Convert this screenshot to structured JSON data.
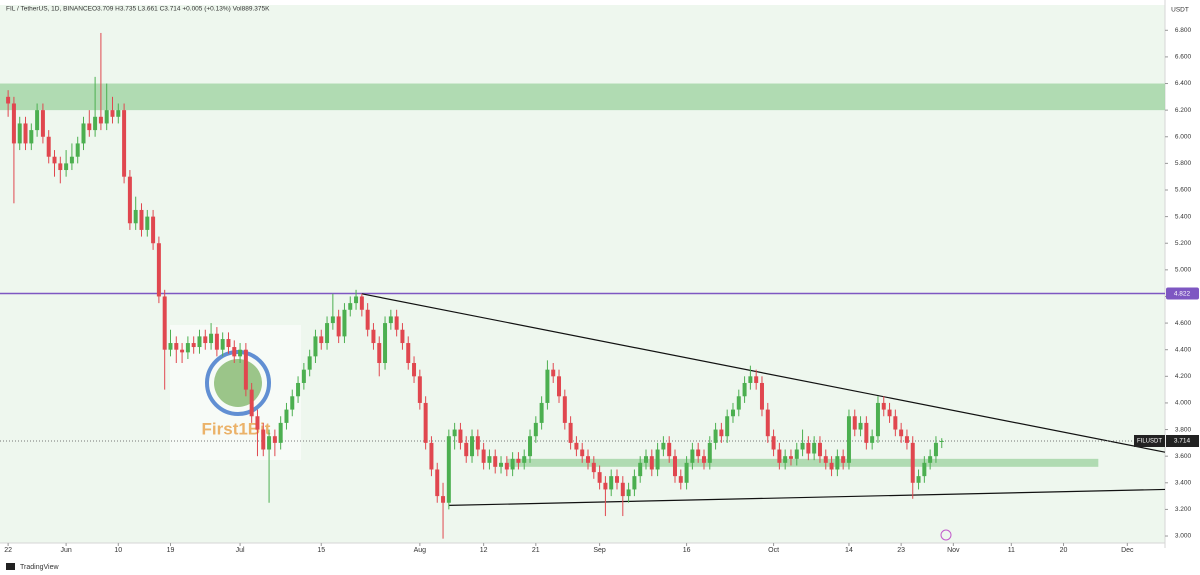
{
  "header": {
    "symbol": "FIL / TetherUS, 1D, BINANCE",
    "ohlc_text": "O3.709 H3.735 L3.661 C3.714 +0.005 (+0.13%) Vol889.375K"
  },
  "currency": "USDT",
  "watermark": "First1Bit",
  "footer": "TradingView",
  "chart_data": {
    "type": "candlestick",
    "up_color": "#4caf50",
    "down_color": "#e0474f",
    "xlim": [
      -1.4,
      199.5
    ],
    "xticks": [
      {
        "value": 0,
        "label": "22"
      },
      {
        "value": 10,
        "label": "Jun"
      },
      {
        "value": 19,
        "label": "10"
      },
      {
        "value": 28,
        "label": "19"
      },
      {
        "value": 40,
        "label": "Jul"
      },
      {
        "value": 54,
        "label": "15"
      },
      {
        "value": 71,
        "label": "Aug"
      },
      {
        "value": 82,
        "label": "12"
      },
      {
        "value": 91,
        "label": "21"
      },
      {
        "value": 102,
        "label": "Sep"
      },
      {
        "value": 117,
        "label": "16"
      },
      {
        "value": 132,
        "label": "Oct"
      },
      {
        "value": 145,
        "label": "14"
      },
      {
        "value": 154,
        "label": "23"
      },
      {
        "value": 163,
        "label": "Nov"
      },
      {
        "value": 173,
        "label": "11"
      },
      {
        "value": 182,
        "label": "20"
      },
      {
        "value": 193,
        "label": "Dec"
      }
    ],
    "ylim": [
      2.91,
      6.99
    ],
    "yticks": [
      {
        "value": 3.0,
        "label": "3.000"
      },
      {
        "value": 3.2,
        "label": "3.200"
      },
      {
        "value": 3.4,
        "label": "3.400"
      },
      {
        "value": 3.6,
        "label": "3.600"
      },
      {
        "value": 3.8,
        "label": "3.800"
      },
      {
        "value": 4.0,
        "label": "4.000"
      },
      {
        "value": 4.2,
        "label": "4.200"
      },
      {
        "value": 4.4,
        "label": "4.400"
      },
      {
        "value": 4.6,
        "label": "4.600"
      },
      {
        "value": 4.8,
        "label": "4.800"
      },
      {
        "value": 5.0,
        "label": "5.000"
      },
      {
        "value": 5.2,
        "label": "5.200"
      },
      {
        "value": 5.4,
        "label": "5.400"
      },
      {
        "value": 5.6,
        "label": "5.600"
      },
      {
        "value": 5.8,
        "label": "5.800"
      },
      {
        "value": 6.0,
        "label": "6.000"
      },
      {
        "value": 6.2,
        "label": "6.200"
      },
      {
        "value": 6.4,
        "label": "6.400"
      },
      {
        "value": 6.6,
        "label": "6.600"
      },
      {
        "value": 6.8,
        "label": "6.800"
      }
    ],
    "zones": [
      {
        "from": 6.2,
        "to": 6.4,
        "color": "#a5d6a7"
      },
      {
        "from": 3.52,
        "to": 3.58,
        "x_start": 86,
        "x_end": 188,
        "color": "#a5d6a7"
      }
    ],
    "level": {
      "value": 4.822,
      "color": "#7e57c2"
    },
    "trendlines": [
      {
        "x": [
          61,
          199.5
        ],
        "y": [
          4.82,
          3.63
        ]
      },
      {
        "x": [
          76,
          199.5
        ],
        "y": [
          3.23,
          3.35
        ]
      }
    ],
    "current": {
      "name": "FILUSDT",
      "value": 3.714
    },
    "ohlc": [
      [
        6.3,
        6.35,
        6.15,
        6.25
      ],
      [
        6.25,
        6.3,
        5.5,
        5.95
      ],
      [
        5.95,
        6.15,
        5.9,
        6.1
      ],
      [
        6.1,
        6.15,
        5.9,
        5.95
      ],
      [
        5.95,
        6.1,
        5.9,
        6.05
      ],
      [
        6.05,
        6.25,
        6.0,
        6.2
      ],
      [
        6.2,
        6.25,
        5.95,
        6.0
      ],
      [
        6.0,
        6.05,
        5.8,
        5.85
      ],
      [
        5.85,
        5.9,
        5.7,
        5.8
      ],
      [
        5.8,
        5.85,
        5.65,
        5.75
      ],
      [
        5.75,
        5.9,
        5.7,
        5.8
      ],
      [
        5.8,
        5.95,
        5.75,
        5.85
      ],
      [
        5.85,
        6.0,
        5.8,
        5.95
      ],
      [
        5.95,
        6.15,
        5.9,
        6.1
      ],
      [
        6.1,
        6.2,
        6.0,
        6.05
      ],
      [
        6.05,
        6.45,
        6.0,
        6.15
      ],
      [
        6.15,
        6.78,
        6.05,
        6.1
      ],
      [
        6.1,
        6.4,
        6.05,
        6.2
      ],
      [
        6.2,
        6.3,
        6.1,
        6.15
      ],
      [
        6.15,
        6.25,
        6.1,
        6.2
      ],
      [
        6.2,
        6.25,
        5.65,
        5.7
      ],
      [
        5.7,
        5.75,
        5.3,
        5.35
      ],
      [
        5.35,
        5.55,
        5.3,
        5.45
      ],
      [
        5.45,
        5.5,
        5.25,
        5.3
      ],
      [
        5.3,
        5.45,
        5.25,
        5.4
      ],
      [
        5.4,
        5.45,
        5.15,
        5.2
      ],
      [
        5.2,
        5.25,
        4.75,
        4.8
      ],
      [
        4.8,
        4.85,
        4.1,
        4.4
      ],
      [
        4.4,
        4.55,
        4.35,
        4.45
      ],
      [
        4.45,
        4.5,
        4.3,
        4.4
      ],
      [
        4.4,
        4.45,
        4.3,
        4.38
      ],
      [
        4.38,
        4.5,
        4.33,
        4.45
      ],
      [
        4.45,
        4.5,
        4.37,
        4.42
      ],
      [
        4.42,
        4.55,
        4.37,
        4.5
      ],
      [
        4.5,
        4.55,
        4.4,
        4.45
      ],
      [
        4.45,
        4.6,
        4.4,
        4.52
      ],
      [
        4.52,
        4.57,
        4.35,
        4.4
      ],
      [
        4.4,
        4.53,
        4.35,
        4.48
      ],
      [
        4.48,
        4.53,
        4.37,
        4.42
      ],
      [
        4.42,
        4.47,
        4.3,
        4.35
      ],
      [
        4.35,
        4.45,
        4.3,
        4.4
      ],
      [
        4.4,
        4.45,
        4.05,
        4.1
      ],
      [
        4.1,
        4.15,
        3.85,
        3.9
      ],
      [
        3.9,
        3.95,
        3.6,
        3.8
      ],
      [
        3.8,
        3.85,
        3.6,
        3.65
      ],
      [
        3.65,
        3.8,
        3.25,
        3.75
      ],
      [
        3.75,
        3.8,
        3.6,
        3.7
      ],
      [
        3.7,
        3.9,
        3.65,
        3.85
      ],
      [
        3.85,
        4.0,
        3.8,
        3.95
      ],
      [
        3.95,
        4.1,
        3.9,
        4.05
      ],
      [
        4.05,
        4.2,
        4.0,
        4.15
      ],
      [
        4.15,
        4.3,
        4.1,
        4.25
      ],
      [
        4.25,
        4.4,
        4.2,
        4.35
      ],
      [
        4.35,
        4.55,
        4.3,
        4.5
      ],
      [
        4.5,
        4.55,
        4.4,
        4.45
      ],
      [
        4.45,
        4.65,
        4.4,
        4.6
      ],
      [
        4.6,
        4.82,
        4.55,
        4.65
      ],
      [
        4.65,
        4.7,
        4.45,
        4.5
      ],
      [
        4.5,
        4.75,
        4.45,
        4.7
      ],
      [
        4.7,
        4.8,
        4.65,
        4.75
      ],
      [
        4.75,
        4.85,
        4.7,
        4.8
      ],
      [
        4.8,
        4.82,
        4.65,
        4.7
      ],
      [
        4.7,
        4.75,
        4.5,
        4.55
      ],
      [
        4.55,
        4.6,
        4.4,
        4.45
      ],
      [
        4.45,
        4.5,
        4.2,
        4.3
      ],
      [
        4.3,
        4.65,
        4.25,
        4.6
      ],
      [
        4.6,
        4.7,
        4.55,
        4.65
      ],
      [
        4.65,
        4.7,
        4.5,
        4.55
      ],
      [
        4.55,
        4.6,
        4.4,
        4.45
      ],
      [
        4.45,
        4.5,
        4.25,
        4.3
      ],
      [
        4.3,
        4.35,
        4.15,
        4.2
      ],
      [
        4.2,
        4.25,
        3.95,
        4.0
      ],
      [
        4.0,
        4.05,
        3.65,
        3.7
      ],
      [
        3.7,
        3.75,
        3.45,
        3.5
      ],
      [
        3.5,
        3.55,
        3.25,
        3.3
      ],
      [
        3.3,
        3.4,
        2.98,
        3.25
      ],
      [
        3.25,
        3.8,
        3.2,
        3.75
      ],
      [
        3.75,
        3.85,
        3.65,
        3.8
      ],
      [
        3.8,
        3.85,
        3.65,
        3.7
      ],
      [
        3.7,
        3.75,
        3.55,
        3.6
      ],
      [
        3.6,
        3.8,
        3.55,
        3.75
      ],
      [
        3.75,
        3.8,
        3.6,
        3.65
      ],
      [
        3.65,
        3.7,
        3.5,
        3.55
      ],
      [
        3.55,
        3.65,
        3.5,
        3.6
      ],
      [
        3.6,
        3.65,
        3.47,
        3.52
      ],
      [
        3.52,
        3.6,
        3.47,
        3.55
      ],
      [
        3.55,
        3.6,
        3.45,
        3.5
      ],
      [
        3.5,
        3.63,
        3.45,
        3.58
      ],
      [
        3.58,
        3.63,
        3.5,
        3.55
      ],
      [
        3.55,
        3.65,
        3.5,
        3.6
      ],
      [
        3.6,
        3.8,
        3.55,
        3.75
      ],
      [
        3.75,
        3.9,
        3.7,
        3.85
      ],
      [
        3.85,
        4.05,
        3.8,
        4.0
      ],
      [
        4.0,
        4.32,
        3.95,
        4.25
      ],
      [
        4.25,
        4.3,
        4.15,
        4.2
      ],
      [
        4.2,
        4.25,
        4.0,
        4.05
      ],
      [
        4.05,
        4.1,
        3.8,
        3.85
      ],
      [
        3.85,
        3.9,
        3.65,
        3.7
      ],
      [
        3.7,
        3.75,
        3.6,
        3.65
      ],
      [
        3.65,
        3.7,
        3.55,
        3.6
      ],
      [
        3.6,
        3.65,
        3.5,
        3.55
      ],
      [
        3.55,
        3.6,
        3.43,
        3.48
      ],
      [
        3.48,
        3.53,
        3.35,
        3.4
      ],
      [
        3.4,
        3.45,
        3.15,
        3.35
      ],
      [
        3.35,
        3.5,
        3.3,
        3.45
      ],
      [
        3.45,
        3.5,
        3.35,
        3.4
      ],
      [
        3.4,
        3.45,
        3.15,
        3.3
      ],
      [
        3.3,
        3.4,
        3.25,
        3.35
      ],
      [
        3.35,
        3.5,
        3.3,
        3.45
      ],
      [
        3.45,
        3.6,
        3.4,
        3.55
      ],
      [
        3.55,
        3.65,
        3.5,
        3.6
      ],
      [
        3.6,
        3.65,
        3.45,
        3.5
      ],
      [
        3.5,
        3.7,
        3.45,
        3.65
      ],
      [
        3.65,
        3.75,
        3.6,
        3.7
      ],
      [
        3.7,
        3.75,
        3.55,
        3.6
      ],
      [
        3.6,
        3.65,
        3.4,
        3.45
      ],
      [
        3.45,
        3.5,
        3.35,
        3.4
      ],
      [
        3.4,
        3.6,
        3.35,
        3.55
      ],
      [
        3.55,
        3.7,
        3.5,
        3.65
      ],
      [
        3.65,
        3.7,
        3.55,
        3.6
      ],
      [
        3.6,
        3.65,
        3.5,
        3.55
      ],
      [
        3.55,
        3.75,
        3.5,
        3.7
      ],
      [
        3.7,
        3.85,
        3.65,
        3.8
      ],
      [
        3.8,
        3.85,
        3.7,
        3.75
      ],
      [
        3.75,
        3.95,
        3.7,
        3.9
      ],
      [
        3.9,
        4.0,
        3.85,
        3.95
      ],
      [
        3.95,
        4.1,
        3.9,
        4.05
      ],
      [
        4.05,
        4.2,
        4.0,
        4.15
      ],
      [
        4.15,
        4.28,
        4.1,
        4.2
      ],
      [
        4.2,
        4.25,
        4.1,
        4.15
      ],
      [
        4.15,
        4.2,
        3.9,
        3.95
      ],
      [
        3.95,
        4.0,
        3.7,
        3.75
      ],
      [
        3.75,
        3.8,
        3.6,
        3.65
      ],
      [
        3.65,
        3.7,
        3.5,
        3.55
      ],
      [
        3.55,
        3.65,
        3.5,
        3.6
      ],
      [
        3.6,
        3.65,
        3.53,
        3.58
      ],
      [
        3.58,
        3.7,
        3.53,
        3.65
      ],
      [
        3.65,
        3.8,
        3.6,
        3.7
      ],
      [
        3.7,
        3.75,
        3.57,
        3.62
      ],
      [
        3.62,
        3.75,
        3.57,
        3.7
      ],
      [
        3.7,
        3.75,
        3.55,
        3.6
      ],
      [
        3.6,
        3.65,
        3.5,
        3.55
      ],
      [
        3.55,
        3.6,
        3.45,
        3.5
      ],
      [
        3.5,
        3.65,
        3.45,
        3.6
      ],
      [
        3.6,
        3.65,
        3.5,
        3.55
      ],
      [
        3.55,
        3.95,
        3.5,
        3.9
      ],
      [
        3.9,
        3.95,
        3.75,
        3.8
      ],
      [
        3.8,
        3.9,
        3.75,
        3.85
      ],
      [
        3.85,
        3.9,
        3.65,
        3.7
      ],
      [
        3.7,
        3.8,
        3.65,
        3.75
      ],
      [
        3.75,
        4.05,
        3.7,
        4.0
      ],
      [
        4.0,
        4.05,
        3.9,
        3.95
      ],
      [
        3.95,
        4.0,
        3.85,
        3.9
      ],
      [
        3.9,
        3.95,
        3.75,
        3.8
      ],
      [
        3.8,
        3.85,
        3.7,
        3.75
      ],
      [
        3.75,
        3.8,
        3.65,
        3.7
      ],
      [
        3.7,
        3.75,
        3.28,
        3.4
      ],
      [
        3.4,
        3.5,
        3.35,
        3.45
      ],
      [
        3.45,
        3.6,
        3.4,
        3.55
      ],
      [
        3.55,
        3.65,
        3.5,
        3.6
      ],
      [
        3.6,
        3.75,
        3.55,
        3.7
      ],
      [
        3.709,
        3.735,
        3.661,
        3.714
      ]
    ]
  }
}
